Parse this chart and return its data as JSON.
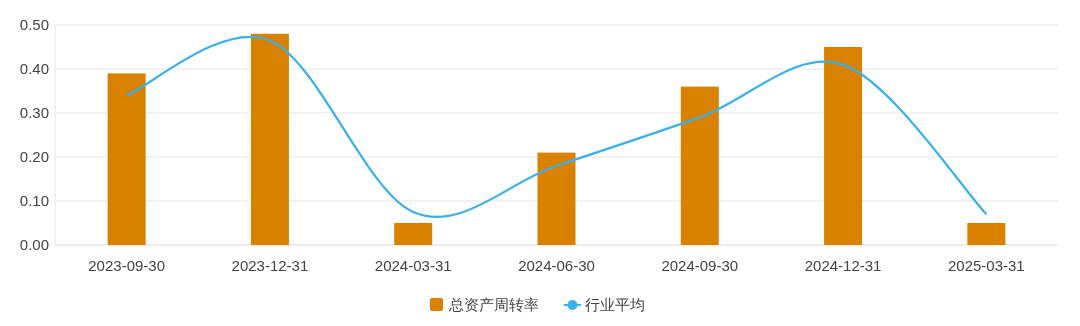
{
  "chart_data": {
    "type": "bar",
    "categories": [
      "2023-09-30",
      "2023-12-31",
      "2024-03-31",
      "2024-06-30",
      "2024-09-30",
      "2024-12-31",
      "2025-03-31"
    ],
    "series": [
      {
        "name": "总资产周转率",
        "color": "#d98200",
        "values": [
          0.39,
          0.48,
          0.05,
          0.21,
          0.36,
          0.45,
          0.05
        ]
      },
      {
        "name": "行业平均",
        "type": "line",
        "color": "#3bb0ea",
        "values": [
          0.34,
          0.465,
          0.075,
          0.18,
          0.29,
          0.41,
          0.07
        ]
      }
    ],
    "ylim": [
      0,
      0.5
    ],
    "yticks": [
      {
        "value": 0,
        "label": "0.00"
      },
      {
        "value": 0.1,
        "label": "0.10"
      },
      {
        "value": 0.2,
        "label": "0.20"
      },
      {
        "value": 0.3,
        "label": "0.30"
      },
      {
        "value": 0.4,
        "label": "0.40"
      },
      {
        "value": 0.5,
        "label": "0.50"
      }
    ],
    "grid": "y",
    "legend": "bottom"
  }
}
